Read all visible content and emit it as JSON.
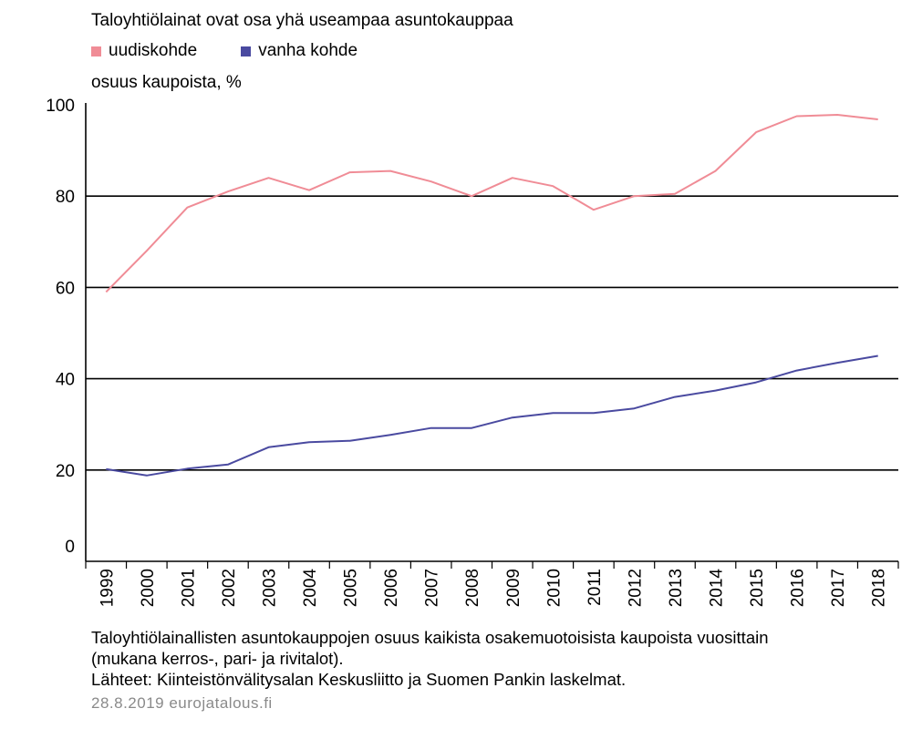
{
  "chart_data": {
    "type": "line",
    "title": "Taloyhtiölainat ovat osa yhä useampaa asuntokauppaa",
    "ylabel": "osuus kaupoista, %",
    "xlabel": "",
    "x": [
      "1999",
      "2000",
      "2001",
      "2002",
      "2003",
      "2004",
      "2005",
      "2006",
      "2007",
      "2008",
      "2009",
      "2010",
      "2011",
      "2012",
      "2013",
      "2014",
      "2015",
      "2016",
      "2017",
      "2018"
    ],
    "ylim": [
      0,
      100
    ],
    "yticks": [
      0,
      20,
      40,
      60,
      80,
      100
    ],
    "grid": true,
    "legend": "top-left",
    "series": [
      {
        "name": "uudiskohde",
        "color": "#f08c96",
        "values": [
          59,
          68,
          77.5,
          81,
          84,
          81.3,
          85.2,
          85.5,
          83.2,
          80,
          84,
          82.2,
          77,
          80,
          80.5,
          85.5,
          94,
          97.5,
          97.8,
          96.8
        ]
      },
      {
        "name": "vanha kohde",
        "color": "#4a4aa0",
        "values": [
          20.2,
          18.8,
          20.3,
          21.2,
          25,
          26.1,
          26.4,
          27.7,
          29.2,
          29.2,
          31.5,
          32.5,
          32.5,
          33.5,
          36,
          37.4,
          39.2,
          41.8,
          43.5,
          45
        ]
      }
    ]
  },
  "note": {
    "line1": "Taloyhtiölainallisten asuntokauppojen osuus kaikista osakemuotoisista kaupoista vuosittain",
    "line2": "(mukana kerros-, pari- ja rivitalot).",
    "line3": "Lähteet: Kiinteistönvälitysalan Keskusliitto ja Suomen Pankin laskelmat."
  },
  "credit": "28.8.2019 eurojatalous.fi"
}
